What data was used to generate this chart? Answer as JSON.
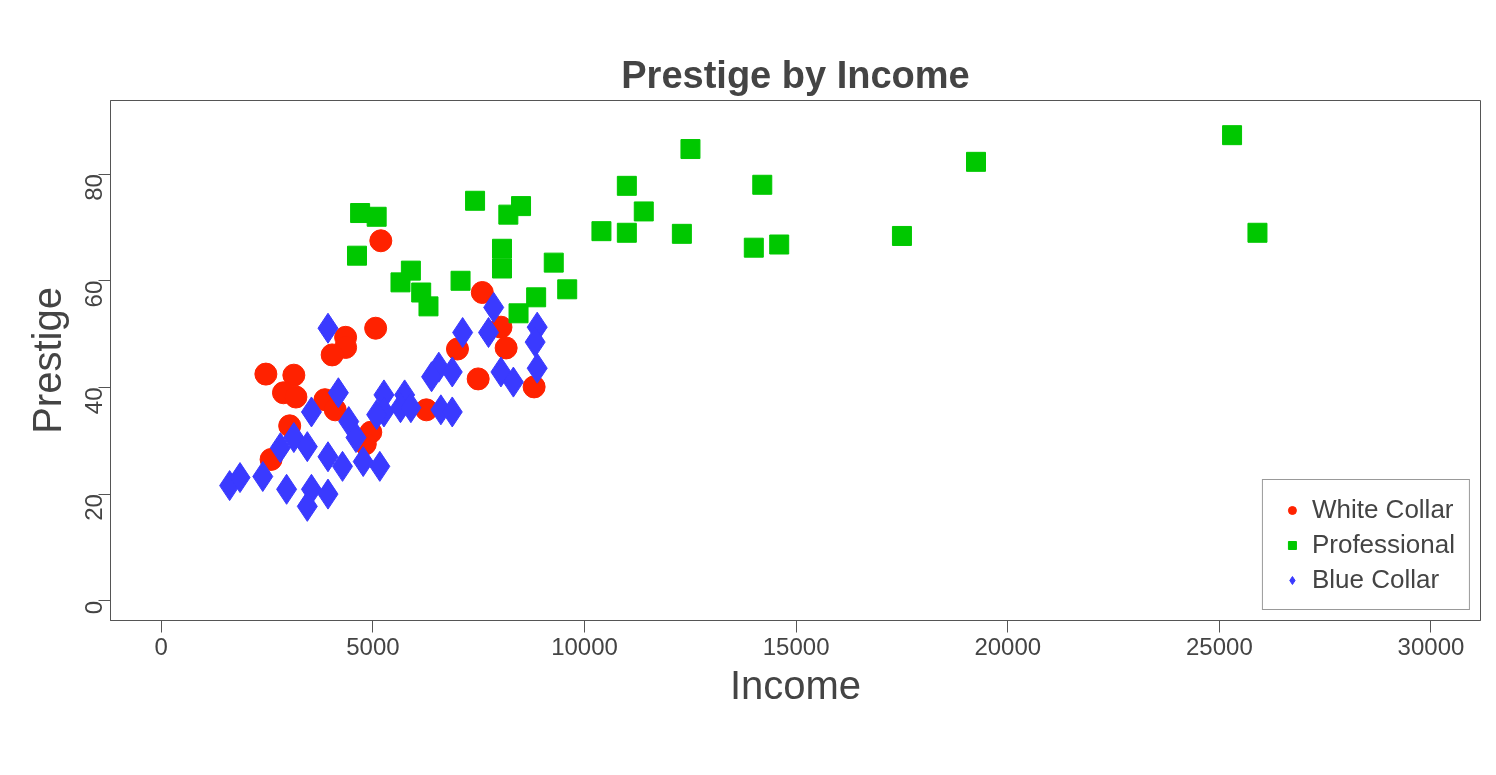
{
  "chart_data": {
    "type": "scatter",
    "title": "Prestige by Income",
    "xlabel": "Income",
    "ylabel": "Prestige",
    "xlim": [
      -1200,
      31170
    ],
    "ylim": [
      -3.7,
      93.8
    ],
    "xticks": [
      0,
      5000,
      10000,
      15000,
      20000,
      25000,
      30000
    ],
    "yticks": [
      0,
      20,
      40,
      60,
      80
    ],
    "grid": false,
    "legend": "bottom right",
    "series": [
      {
        "name": "White Collar",
        "color": "#ff2200",
        "marker": "circle",
        "x": [
          7585,
          5065,
          4355,
          4355,
          4037,
          2471,
          3132,
          2887,
          3181,
          3866,
          4110,
          3034,
          4950,
          4820,
          2594,
          6264,
          6998,
          8148,
          7487,
          8026,
          8809,
          5187
        ],
        "values": [
          57.8,
          51.1,
          49.4,
          47.5,
          46.1,
          42.5,
          42.3,
          39.0,
          38.2,
          37.7,
          35.8,
          32.8,
          31.6,
          29.4,
          26.5,
          35.8,
          47.2,
          47.4,
          41.6,
          51.3,
          40.1,
          67.5
        ]
      },
      {
        "name": "Professional",
        "color": "#00c800",
        "marker": "square",
        "x": [
          4698,
          5089,
          4624,
          7414,
          8500,
          8200,
          8050,
          8050,
          5897,
          5652,
          6141,
          6313,
          7071,
          9273,
          9591,
          8857,
          8441,
          12503,
          11000,
          11000,
          11400,
          10400,
          12300,
          14200,
          14000,
          14600,
          17500,
          19250,
          25300,
          25900
        ],
        "values": [
          72.7,
          72.0,
          64.7,
          75.0,
          74.0,
          72.4,
          66.0,
          62.3,
          61.9,
          59.7,
          57.8,
          55.2,
          60.0,
          63.4,
          58.4,
          56.9,
          53.9,
          84.7,
          77.8,
          69.0,
          73.0,
          69.3,
          68.8,
          78.0,
          66.2,
          66.8,
          68.4,
          82.3,
          87.3,
          69.0
        ]
      },
      {
        "name": "Blue Collar",
        "color": "#3a3aff",
        "marker": "diamond",
        "x": [
          3939,
          7854,
          7120,
          7732,
          8882,
          8833,
          8882,
          8025,
          8319,
          6557,
          6875,
          6386,
          4184,
          3548,
          5261,
          5261,
          5750,
          5652,
          5897,
          6606,
          6875,
          5089,
          4429,
          4600,
          3132,
          2814,
          3450,
          3939,
          4282,
          4771,
          5163,
          2398,
          2961,
          3548,
          3939,
          3450,
          1615,
          1860
        ],
        "values": [
          51.1,
          55.0,
          50.3,
          50.3,
          51.3,
          48.5,
          43.6,
          42.9,
          41.0,
          43.8,
          42.9,
          42.0,
          39.0,
          35.4,
          38.6,
          35.4,
          38.6,
          36.2,
          36.2,
          35.8,
          35.4,
          34.9,
          33.6,
          30.6,
          30.6,
          28.7,
          28.9,
          27.0,
          25.2,
          26.1,
          25.2,
          23.3,
          20.9,
          20.9,
          20.0,
          17.7,
          21.6,
          23.1
        ]
      }
    ]
  }
}
